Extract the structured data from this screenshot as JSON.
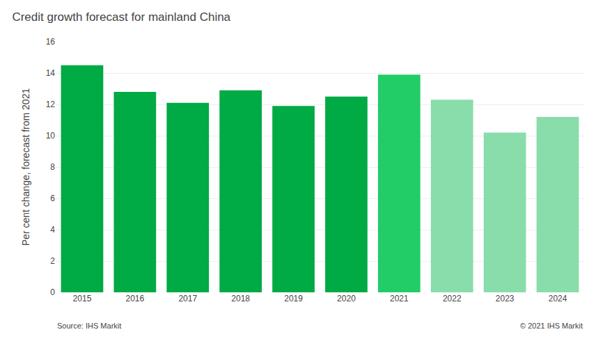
{
  "chart_data": {
    "type": "bar",
    "title": "Credit growth forecast for mainland China",
    "y_label": "Per cent change, forecast from 2021",
    "categories": [
      "2015",
      "2016",
      "2017",
      "2018",
      "2019",
      "2020",
      "2021",
      "2022",
      "2023",
      "2024"
    ],
    "values": [
      14.5,
      12.8,
      12.1,
      12.9,
      11.9,
      12.5,
      13.9,
      12.3,
      10.2,
      11.2
    ],
    "colors": [
      "#00aa44",
      "#00aa44",
      "#00aa44",
      "#00aa44",
      "#00aa44",
      "#00aa44",
      "#22cc66",
      "#88ddaa",
      "#88ddaa",
      "#88ddaa"
    ],
    "ylim": [
      0,
      16
    ],
    "yticks": [
      0,
      2,
      4,
      6,
      8,
      10,
      12,
      14,
      16
    ],
    "grid": true,
    "annotations": [
      "Source: IHS Markit",
      "© 2021 IHS Markit"
    ]
  }
}
